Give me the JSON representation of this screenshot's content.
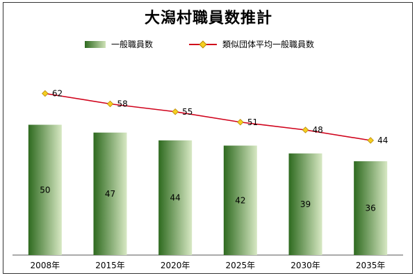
{
  "chart_data": {
    "type": "bar",
    "title": "大潟村職員数推計",
    "categories": [
      "2008年",
      "2015年",
      "2020年",
      "2025年",
      "2030年",
      "2035年"
    ],
    "series": [
      {
        "name": "一般職員数",
        "type": "bar",
        "values": [
          50,
          47,
          44,
          42,
          39,
          36
        ]
      },
      {
        "name": "類似団体平均一般職員数",
        "type": "line",
        "values": [
          62,
          58,
          55,
          51,
          48,
          44
        ]
      }
    ],
    "ylim": [
      0,
      80
    ],
    "grid": false,
    "legend": "top-center"
  },
  "colors": {
    "bar_dark": "#2e6a1f",
    "bar_light": "#d7e8c3",
    "line": "#d0021b",
    "marker": "#f5d020"
  }
}
